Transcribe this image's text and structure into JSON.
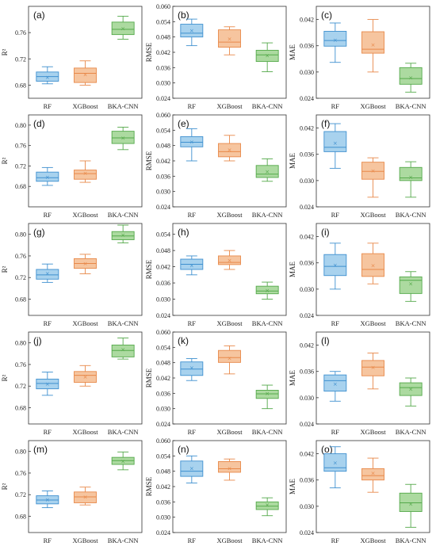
{
  "chart_data": [
    {
      "type": "box",
      "panel_label": "(a)",
      "ylabel": "R²",
      "categories": [
        "RF",
        "XGBoost",
        "BKA-CNN"
      ],
      "ylim": [
        0.66,
        0.8
      ],
      "yticks": [
        "0.68",
        "0.72",
        "0.76"
      ],
      "boxes": [
        {
          "min": 0.682,
          "q1": 0.686,
          "median": 0.693,
          "q3": 0.7,
          "max": 0.708,
          "mean": 0.692
        },
        {
          "min": 0.68,
          "q1": 0.684,
          "median": 0.698,
          "q3": 0.706,
          "max": 0.717,
          "mean": 0.696
        },
        {
          "min": 0.75,
          "q1": 0.757,
          "median": 0.765,
          "q3": 0.776,
          "max": 0.785,
          "mean": 0.766
        }
      ]
    },
    {
      "type": "box",
      "panel_label": "(b)",
      "ylabel": "RMSE",
      "categories": [
        "RF",
        "XGBoost",
        "BKA-CNN"
      ],
      "ylim": [
        0.024,
        0.06
      ],
      "yticks": [
        "0.024",
        "0.030",
        "0.036",
        "0.042",
        "0.048",
        "0.054",
        "0.060"
      ],
      "boxes": [
        {
          "min": 0.0446,
          "q1": 0.048,
          "median": 0.0495,
          "q3": 0.053,
          "max": 0.055,
          "mean": 0.0505
        },
        {
          "min": 0.041,
          "q1": 0.044,
          "median": 0.046,
          "q3": 0.0508,
          "max": 0.052,
          "mean": 0.0472
        },
        {
          "min": 0.0344,
          "q1": 0.0384,
          "median": 0.041,
          "q3": 0.0428,
          "max": 0.0457,
          "mean": 0.0407
        }
      ]
    },
    {
      "type": "box",
      "panel_label": "(c)",
      "ylabel": "MAE",
      "categories": [
        "RF",
        "XGBoost",
        "BKA-CNN"
      ],
      "ylim": [
        0.024,
        0.045
      ],
      "yticks": [
        "0.024",
        "0.030",
        "0.036",
        "0.042"
      ],
      "boxes": [
        {
          "min": 0.0322,
          "q1": 0.0359,
          "median": 0.0372,
          "q3": 0.0393,
          "max": 0.0412,
          "mean": 0.0373
        },
        {
          "min": 0.03,
          "q1": 0.0343,
          "median": 0.0352,
          "q3": 0.0392,
          "max": 0.042,
          "mean": 0.0362
        },
        {
          "min": 0.0254,
          "q1": 0.0272,
          "median": 0.0285,
          "q3": 0.031,
          "max": 0.032,
          "mean": 0.0287
        }
      ]
    },
    {
      "type": "box",
      "panel_label": "(d)",
      "ylabel": "R²",
      "categories": [
        "RF",
        "XGBoost",
        "BKA-CNN"
      ],
      "ylim": [
        0.64,
        0.82
      ],
      "yticks": [
        "0.68",
        "0.72",
        "0.76",
        "0.80"
      ],
      "boxes": [
        {
          "min": 0.682,
          "q1": 0.69,
          "median": 0.697,
          "q3": 0.708,
          "max": 0.717,
          "mean": 0.698
        },
        {
          "min": 0.688,
          "q1": 0.694,
          "median": 0.705,
          "q3": 0.712,
          "max": 0.73,
          "mean": 0.706
        },
        {
          "min": 0.752,
          "q1": 0.764,
          "median": 0.775,
          "q3": 0.788,
          "max": 0.796,
          "mean": 0.775
        }
      ]
    },
    {
      "type": "box",
      "panel_label": "(e)",
      "ylabel": "RMSE",
      "categories": [
        "RF",
        "XGBoost",
        "BKA-CNN"
      ],
      "ylim": [
        0.024,
        0.06
      ],
      "yticks": [
        "0.024",
        "0.030",
        "0.036",
        "0.042",
        "0.048",
        "0.054",
        "0.060"
      ],
      "boxes": [
        {
          "min": 0.042,
          "q1": 0.0475,
          "median": 0.0493,
          "q3": 0.0515,
          "max": 0.0546,
          "mean": 0.0494
        },
        {
          "min": 0.042,
          "q1": 0.0436,
          "median": 0.0456,
          "q3": 0.0488,
          "max": 0.052,
          "mean": 0.0463
        },
        {
          "min": 0.034,
          "q1": 0.0355,
          "median": 0.0368,
          "q3": 0.0402,
          "max": 0.0428,
          "mean": 0.0378
        }
      ]
    },
    {
      "type": "box",
      "panel_label": "(f)",
      "ylabel": "MAE",
      "categories": [
        "RF",
        "XGBoost",
        "BKA-CNN"
      ],
      "ylim": [
        0.024,
        0.045
      ],
      "yticks": [
        "0.024",
        "0.030",
        "0.036",
        "0.042"
      ],
      "boxes": [
        {
          "min": 0.0328,
          "q1": 0.0366,
          "median": 0.0376,
          "q3": 0.0412,
          "max": 0.043,
          "mean": 0.0386
        },
        {
          "min": 0.0262,
          "q1": 0.0303,
          "median": 0.0321,
          "q3": 0.0342,
          "max": 0.0352,
          "mean": 0.0322
        },
        {
          "min": 0.0262,
          "q1": 0.03,
          "median": 0.0306,
          "q3": 0.033,
          "max": 0.0343,
          "mean": 0.0308
        }
      ]
    },
    {
      "type": "box",
      "panel_label": "(g)",
      "ylabel": "R²",
      "categories": [
        "RF",
        "XGBoost",
        "BKA-CNN"
      ],
      "ylim": [
        0.65,
        0.82
      ],
      "yticks": [
        "0.68",
        "0.72",
        "0.76",
        "0.80"
      ],
      "boxes": [
        {
          "min": 0.711,
          "q1": 0.717,
          "median": 0.725,
          "q3": 0.735,
          "max": 0.745,
          "mean": 0.728
        },
        {
          "min": 0.727,
          "q1": 0.737,
          "median": 0.746,
          "q3": 0.755,
          "max": 0.763,
          "mean": 0.746
        },
        {
          "min": 0.784,
          "q1": 0.79,
          "median": 0.797,
          "q3": 0.805,
          "max": 0.817,
          "mean": 0.799
        }
      ]
    },
    {
      "type": "box",
      "panel_label": "(h)",
      "ylabel": "RMSE",
      "categories": [
        "RF",
        "XGBoost",
        "BKA-CNN"
      ],
      "ylim": [
        0.024,
        0.058
      ],
      "yticks": [
        "0.024",
        "0.030",
        "0.036",
        "0.042",
        "0.048",
        "0.054"
      ],
      "boxes": [
        {
          "min": 0.039,
          "q1": 0.041,
          "median": 0.0429,
          "q3": 0.0448,
          "max": 0.046,
          "mean": 0.0424
        },
        {
          "min": 0.041,
          "q1": 0.0428,
          "median": 0.0436,
          "q3": 0.046,
          "max": 0.048,
          "mean": 0.0444
        },
        {
          "min": 0.03,
          "q1": 0.032,
          "median": 0.033,
          "q3": 0.0348,
          "max": 0.0363,
          "mean": 0.0332
        }
      ]
    },
    {
      "type": "box",
      "panel_label": "(i)",
      "ylabel": "MAE",
      "categories": [
        "RF",
        "XGBoost",
        "BKA-CNN"
      ],
      "ylim": [
        0.024,
        0.045
      ],
      "yticks": [
        "0.024",
        "0.030",
        "0.036",
        "0.042"
      ],
      "boxes": [
        {
          "min": 0.03,
          "q1": 0.0331,
          "median": 0.0352,
          "q3": 0.0379,
          "max": 0.0405,
          "mean": 0.0355
        },
        {
          "min": 0.0312,
          "q1": 0.0329,
          "median": 0.0345,
          "q3": 0.0381,
          "max": 0.0405,
          "mean": 0.0354
        },
        {
          "min": 0.0272,
          "q1": 0.029,
          "median": 0.032,
          "q3": 0.0328,
          "max": 0.034,
          "mean": 0.0312
        }
      ]
    },
    {
      "type": "box",
      "panel_label": "(j)",
      "ylabel": "R²",
      "categories": [
        "RF",
        "XGBoost",
        "BKA-CNN"
      ],
      "ylim": [
        0.65,
        0.82
      ],
      "yticks": [
        "0.68",
        "0.72",
        "0.76",
        "0.80"
      ],
      "boxes": [
        {
          "min": 0.703,
          "q1": 0.715,
          "median": 0.725,
          "q3": 0.733,
          "max": 0.746,
          "mean": 0.724
        },
        {
          "min": 0.72,
          "q1": 0.727,
          "median": 0.74,
          "q3": 0.747,
          "max": 0.758,
          "mean": 0.737
        },
        {
          "min": 0.77,
          "q1": 0.774,
          "median": 0.786,
          "q3": 0.796,
          "max": 0.809,
          "mean": 0.788
        }
      ]
    },
    {
      "type": "box",
      "panel_label": "(k)",
      "ylabel": "RMSE",
      "categories": [
        "RF",
        "XGBoost",
        "BKA-CNN"
      ],
      "ylim": [
        0.024,
        0.06
      ],
      "yticks": [
        "0.024",
        "0.030",
        "0.036",
        "0.042",
        "0.048",
        "0.054",
        "0.060"
      ],
      "boxes": [
        {
          "min": 0.041,
          "q1": 0.043,
          "median": 0.0455,
          "q3": 0.0483,
          "max": 0.0496,
          "mean": 0.046
        },
        {
          "min": 0.0436,
          "q1": 0.0481,
          "median": 0.05,
          "q3": 0.0528,
          "max": 0.0546,
          "mean": 0.0497
        },
        {
          "min": 0.03,
          "q1": 0.034,
          "median": 0.0358,
          "q3": 0.0372,
          "max": 0.0392,
          "mean": 0.036
        }
      ]
    },
    {
      "type": "box",
      "panel_label": "(l)",
      "ylabel": "MAE",
      "categories": [
        "RF",
        "XGBoost",
        "BKA-CNN"
      ],
      "ylim": [
        0.024,
        0.045
      ],
      "yticks": [
        "0.024",
        "0.030",
        "0.036",
        "0.042"
      ],
      "boxes": [
        {
          "min": 0.0292,
          "q1": 0.0315,
          "median": 0.0339,
          "q3": 0.0352,
          "max": 0.036,
          "mean": 0.0331
        },
        {
          "min": 0.032,
          "q1": 0.035,
          "median": 0.037,
          "q3": 0.0385,
          "max": 0.0402,
          "mean": 0.0369
        },
        {
          "min": 0.0281,
          "q1": 0.0305,
          "median": 0.0323,
          "q3": 0.0334,
          "max": 0.0345,
          "mean": 0.032
        }
      ]
    },
    {
      "type": "box",
      "panel_label": "(m)",
      "ylabel": "R²",
      "categories": [
        "RF",
        "XGBoost",
        "BKA-CNN"
      ],
      "ylim": [
        0.65,
        0.82
      ],
      "yticks": [
        "0.68",
        "0.72",
        "0.76",
        "0.80"
      ],
      "boxes": [
        {
          "min": 0.696,
          "q1": 0.703,
          "median": 0.71,
          "q3": 0.718,
          "max": 0.727,
          "mean": 0.711
        },
        {
          "min": 0.701,
          "q1": 0.705,
          "median": 0.716,
          "q3": 0.725,
          "max": 0.734,
          "mean": 0.716
        },
        {
          "min": 0.766,
          "q1": 0.776,
          "median": 0.783,
          "q3": 0.789,
          "max": 0.799,
          "mean": 0.782
        }
      ]
    },
    {
      "type": "box",
      "panel_label": "(n)",
      "ylabel": "RMSE",
      "categories": [
        "RF",
        "XGBoost",
        "BKA-CNN"
      ],
      "ylim": [
        0.024,
        0.06
      ],
      "yticks": [
        "0.024",
        "0.030",
        "0.036",
        "0.042",
        "0.048",
        "0.054",
        "0.060"
      ],
      "boxes": [
        {
          "min": 0.0434,
          "q1": 0.046,
          "median": 0.048,
          "q3": 0.052,
          "max": 0.054,
          "mean": 0.0492
        },
        {
          "min": 0.0445,
          "q1": 0.0476,
          "median": 0.049,
          "q3": 0.0518,
          "max": 0.0528,
          "mean": 0.0492
        },
        {
          "min": 0.0306,
          "q1": 0.033,
          "median": 0.0343,
          "q3": 0.036,
          "max": 0.0376,
          "mean": 0.0349
        }
      ]
    },
    {
      "type": "box",
      "panel_label": "(o)",
      "ylabel": "MAE",
      "categories": [
        "RF",
        "XGBoost",
        "BKA-CNN"
      ],
      "ylim": [
        0.024,
        0.045
      ],
      "yticks": [
        "0.024",
        "0.030",
        "0.036",
        "0.042"
      ],
      "boxes": [
        {
          "min": 0.0342,
          "q1": 0.038,
          "median": 0.0388,
          "q3": 0.042,
          "max": 0.0436,
          "mean": 0.0399
        },
        {
          "min": 0.0332,
          "q1": 0.036,
          "median": 0.037,
          "q3": 0.0386,
          "max": 0.041,
          "mean": 0.0376
        },
        {
          "min": 0.0252,
          "q1": 0.0288,
          "median": 0.0308,
          "q3": 0.033,
          "max": 0.035,
          "mean": 0.0305
        }
      ]
    }
  ],
  "colors": {
    "RF": {
      "fill": "#a8d2ee",
      "stroke": "#3f90cf"
    },
    "XGBoost": {
      "fill": "#f6c59f",
      "stroke": "#e8894a"
    },
    "BKA-CNN": {
      "fill": "#acdaa0",
      "stroke": "#54a94a"
    }
  }
}
